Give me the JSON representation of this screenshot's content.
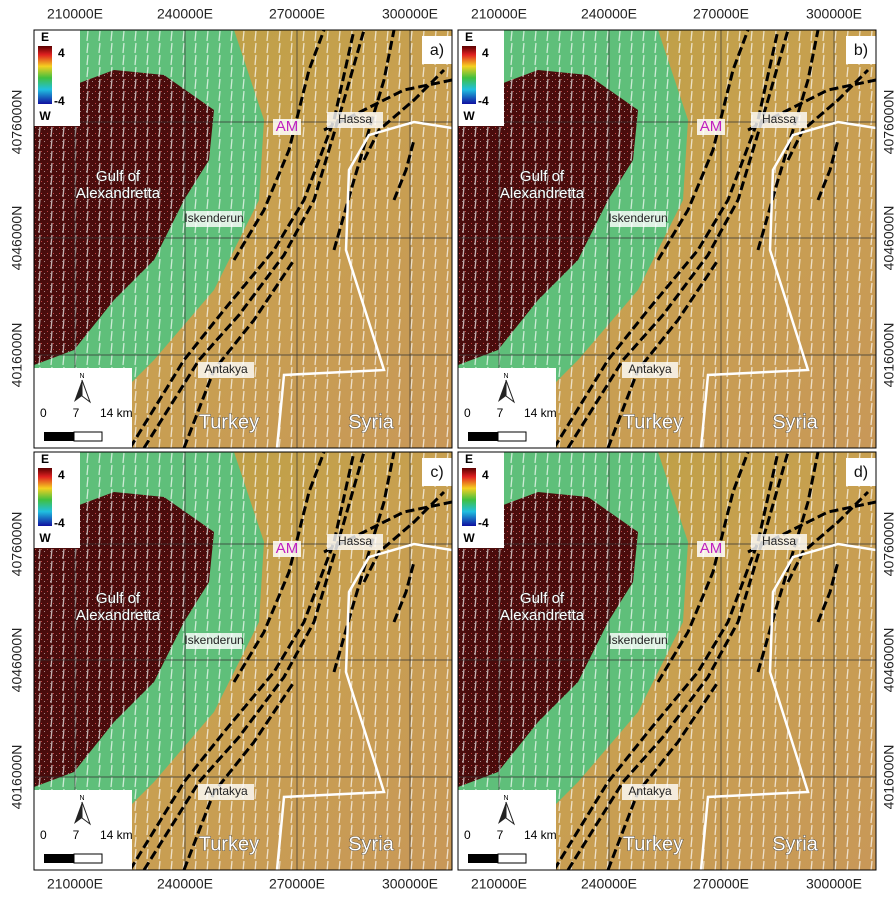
{
  "x_ticks": [
    "210000E",
    "240000E",
    "270000E",
    "300000E"
  ],
  "y_ticks": [
    "4076000N",
    "4046000N",
    "4016000N"
  ],
  "panels": [
    {
      "label": "a)"
    },
    {
      "label": "b)"
    },
    {
      "label": "c)"
    },
    {
      "label": "d)"
    }
  ],
  "legend": {
    "top_label": "E",
    "max": 4,
    "min": -4,
    "bottom_label": "W"
  },
  "scale_bar": {
    "north": "N",
    "ticks": [
      "0",
      "7",
      "14 km"
    ]
  },
  "places": [
    {
      "name": "AM"
    },
    {
      "name": "Hassa"
    },
    {
      "name": "Gulf of"
    },
    {
      "name": "Alexandretta"
    },
    {
      "name": "Iskenderun"
    },
    {
      "name": "Antakya"
    },
    {
      "name": "Turkey"
    },
    {
      "name": "Syria"
    }
  ]
}
